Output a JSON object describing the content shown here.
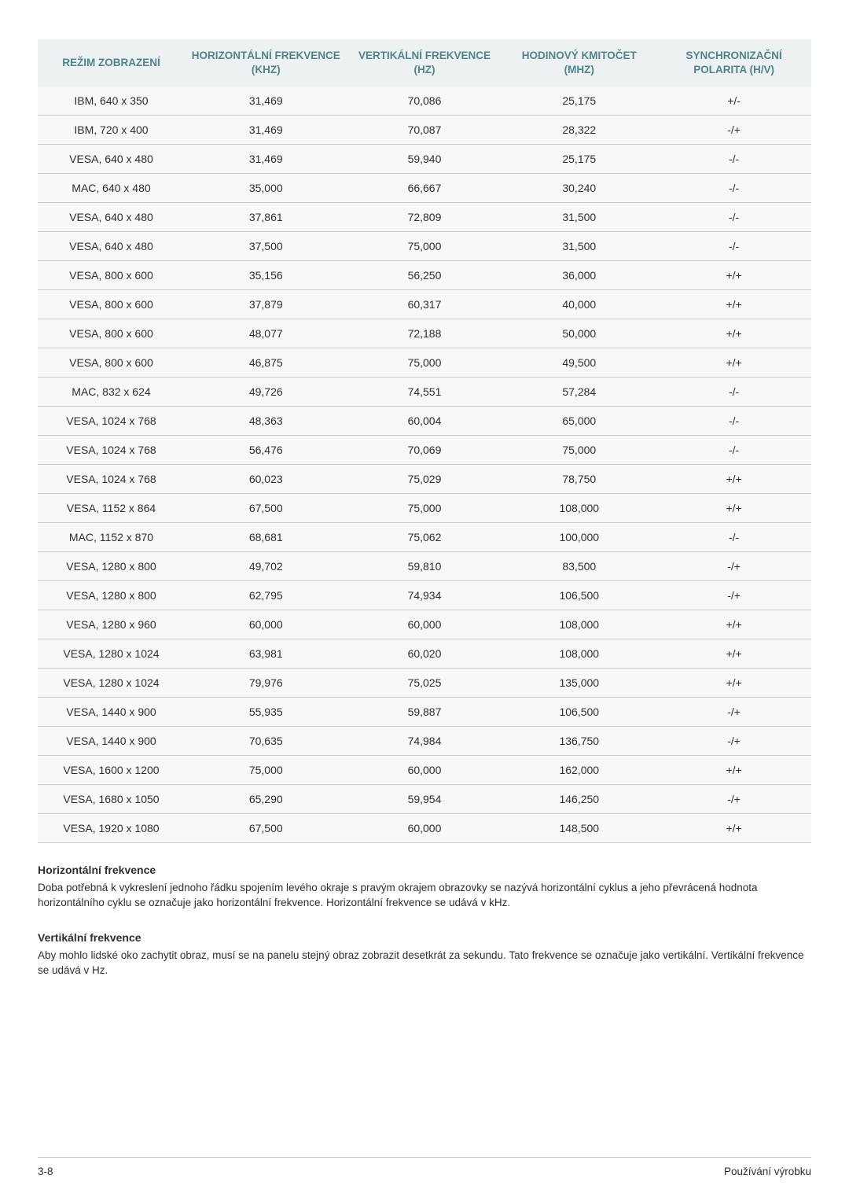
{
  "table": {
    "header_color": "#4d858f",
    "columns": [
      "REŽIM ZOBRAZENÍ",
      "HORIZONTÁLNÍ FREKVENCE (KHZ)",
      "VERTIKÁLNÍ FREKVENCE (HZ)",
      "HODINOVÝ KMITOČET (MHZ)",
      "SYNCHRONIZAČNÍ POLARITA (H/V)"
    ],
    "rows": [
      [
        "IBM, 640 x 350",
        "31,469",
        "70,086",
        "25,175",
        "+/-"
      ],
      [
        "IBM, 720 x 400",
        "31,469",
        "70,087",
        "28,322",
        "-/+"
      ],
      [
        "VESA, 640 x 480",
        "31,469",
        "59,940",
        "25,175",
        "-/-"
      ],
      [
        "MAC, 640 x 480",
        "35,000",
        "66,667",
        "30,240",
        "-/-"
      ],
      [
        "VESA, 640 x 480",
        "37,861",
        "72,809",
        "31,500",
        "-/-"
      ],
      [
        "VESA, 640 x 480",
        "37,500",
        "75,000",
        "31,500",
        "-/-"
      ],
      [
        "VESA, 800 x 600",
        "35,156",
        "56,250",
        "36,000",
        "+/+"
      ],
      [
        "VESA, 800 x 600",
        "37,879",
        "60,317",
        "40,000",
        "+/+"
      ],
      [
        "VESA, 800 x 600",
        "48,077",
        "72,188",
        "50,000",
        "+/+"
      ],
      [
        "VESA, 800 x 600",
        "46,875",
        "75,000",
        "49,500",
        "+/+"
      ],
      [
        "MAC, 832 x 624",
        "49,726",
        "74,551",
        "57,284",
        "-/-"
      ],
      [
        "VESA, 1024 x 768",
        "48,363",
        "60,004",
        "65,000",
        "-/-"
      ],
      [
        "VESA, 1024 x 768",
        "56,476",
        "70,069",
        "75,000",
        "-/-"
      ],
      [
        "VESA, 1024 x 768",
        "60,023",
        "75,029",
        "78,750",
        "+/+"
      ],
      [
        "VESA, 1152 x 864",
        "67,500",
        "75,000",
        "108,000",
        "+/+"
      ],
      [
        "MAC, 1152 x 870",
        "68,681",
        "75,062",
        "100,000",
        "-/-"
      ],
      [
        "VESA, 1280 x 800",
        "49,702",
        "59,810",
        "83,500",
        "-/+"
      ],
      [
        "VESA, 1280 x 800",
        "62,795",
        "74,934",
        "106,500",
        "-/+"
      ],
      [
        "VESA, 1280 x 960",
        "60,000",
        "60,000",
        "108,000",
        "+/+"
      ],
      [
        "VESA, 1280 x 1024",
        "63,981",
        "60,020",
        "108,000",
        "+/+"
      ],
      [
        "VESA, 1280 x 1024",
        "79,976",
        "75,025",
        "135,000",
        "+/+"
      ],
      [
        "VESA, 1440 x 900",
        "55,935",
        "59,887",
        "106,500",
        "-/+"
      ],
      [
        "VESA, 1440 x 900",
        "70,635",
        "74,984",
        "136,750",
        "-/+"
      ],
      [
        "VESA, 1600 x 1200",
        "75,000",
        "60,000",
        "162,000",
        "+/+"
      ],
      [
        "VESA, 1680 x 1050",
        "65,290",
        "59,954",
        "146,250",
        "-/+"
      ],
      [
        "VESA, 1920 x 1080",
        "67,500",
        "60,000",
        "148,500",
        "+/+"
      ]
    ]
  },
  "sections": [
    {
      "title": "Horizontální frekvence",
      "body": "Doba potřebná k vykreslení jednoho řádku spojením levého okraje s pravým okrajem obrazovky se nazývá horizontální cyklus a jeho převrácená hodnota horizontálního cyklu se označuje jako horizontální frekvence. Horizontální frekvence se udává v kHz."
    },
    {
      "title": "Vertikální frekvence",
      "body": "Aby mohlo lidské oko zachytit obraz, musí se na panelu stejný obraz zobrazit desetkrát za sekundu. Tato frekvence se označuje jako vertikální. Vertikální frekvence se udává v Hz."
    }
  ],
  "footer": {
    "left": "3-8",
    "right": "Používání výrobku"
  }
}
